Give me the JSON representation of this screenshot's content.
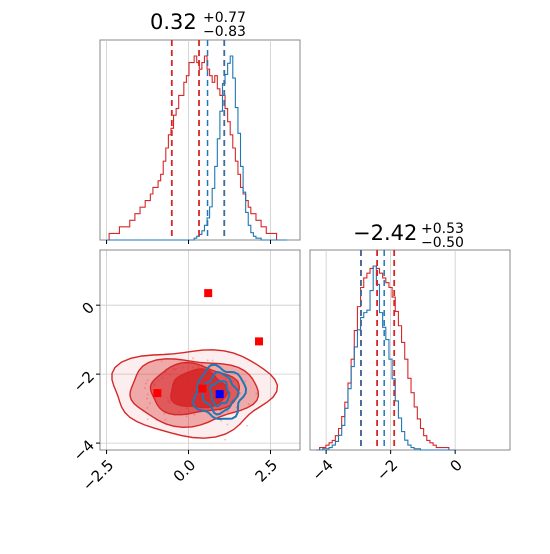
{
  "colors": {
    "red": "#d62728",
    "blue": "#1f77b4",
    "marker_red": "#ff0000",
    "marker_blue": "#0000ff",
    "grid": "#cccccc",
    "frame": "#888888"
  },
  "chart_data": [
    {
      "panel": "top-left",
      "type": "histogram",
      "title": {
        "base": "0.32",
        "sup": "+0.77",
        "sub": "−0.83"
      },
      "xlim": [
        -2.7,
        3.4
      ],
      "grid": true,
      "vlines_red": [
        -0.51,
        0.32,
        1.09
      ],
      "vlines_blue": [
        0.58,
        1.09
      ],
      "series": [
        {
          "name": "",
          "color": "red",
          "x_range": [
            -2.5,
            3.0
          ],
          "values": [
            0,
            1,
            1,
            1,
            1,
            2,
            2,
            2,
            2,
            3,
            3,
            4,
            4,
            5,
            5,
            6,
            6,
            7,
            8,
            8,
            9,
            10,
            12,
            14,
            16,
            17,
            19,
            20,
            22,
            22,
            24,
            25,
            27,
            27,
            28,
            27,
            26,
            27,
            28,
            26,
            25,
            24,
            25,
            23,
            22,
            22,
            20,
            18,
            16,
            14,
            12,
            10,
            8,
            7,
            6,
            5,
            4,
            4,
            3,
            3,
            2,
            2,
            1,
            1,
            1,
            1,
            0,
            0,
            0,
            0
          ]
        },
        {
          "name": "",
          "color": "blue",
          "x_range": [
            -2.5,
            3.0
          ],
          "values": [
            0,
            0,
            0,
            0,
            0,
            0,
            0,
            0,
            0,
            0,
            0,
            0,
            0,
            0,
            0,
            0,
            0,
            0,
            0,
            0,
            0,
            0,
            0,
            0,
            0,
            0,
            0,
            0,
            0,
            0,
            0,
            0,
            0,
            0,
            1,
            2,
            3,
            5,
            8,
            12,
            18,
            28,
            40,
            55,
            70,
            85,
            90,
            96,
            100,
            88,
            72,
            58,
            40,
            26,
            15,
            8,
            4,
            2,
            1,
            1,
            0,
            0,
            0,
            0,
            0,
            0,
            0,
            0,
            0,
            0
          ]
        }
      ]
    },
    {
      "panel": "bottom-left",
      "type": "scatter",
      "xlim": [
        -2.7,
        3.4
      ],
      "ylim": [
        -4.2,
        1.6
      ],
      "grid": true,
      "x_ticks": [
        "−2.5",
        "0.0",
        "2.5"
      ],
      "x_tick_values": [
        -2.5,
        0.0,
        2.5
      ],
      "y_ticks": [
        "0",
        "−2",
        "−4"
      ],
      "y_tick_values": [
        0,
        -2,
        -4
      ],
      "red_markers": [
        [
          0.6,
          0.35
        ],
        [
          2.15,
          -1.05
        ],
        [
          -0.95,
          -2.55
        ],
        [
          0.42,
          -2.42
        ]
      ],
      "blue_markers": [
        [
          0.95,
          -2.58
        ]
      ],
      "red_contours": [
        {
          "cx": 0.12,
          "cy": -2.5,
          "rx": 2.45,
          "ry": 1.25,
          "fill": 0.08
        },
        {
          "cx": 0.1,
          "cy": -2.5,
          "rx": 1.95,
          "ry": 0.95,
          "fill": 0.35
        },
        {
          "cx": 0.15,
          "cy": -2.45,
          "rx": 1.35,
          "ry": 0.72,
          "fill": 0.6
        },
        {
          "cx": 0.3,
          "cy": -2.45,
          "rx": 0.85,
          "ry": 0.55,
          "fill": 0.9
        }
      ],
      "blue_contours": [
        {
          "cx": 0.95,
          "cy": -2.55,
          "rx": 0.75,
          "ry": 0.75
        },
        {
          "cx": 0.95,
          "cy": -2.55,
          "rx": 0.5,
          "ry": 0.55
        },
        {
          "cx": 0.95,
          "cy": -2.55,
          "rx": 0.28,
          "ry": 0.35
        }
      ]
    },
    {
      "panel": "bottom-right",
      "type": "histogram",
      "title": {
        "base": "−2.42",
        "sup": "+0.53",
        "sub": "−0.50"
      },
      "xlim": [
        -4.5,
        1.7
      ],
      "grid": true,
      "x_ticks": [
        "−4",
        "−2",
        "0"
      ],
      "x_tick_values": [
        -4,
        -2,
        0
      ],
      "vlines_red": [
        -2.92,
        -2.42,
        -1.89
      ],
      "vlines_blue": [
        -2.92,
        -2.2
      ],
      "series": [
        {
          "name": "",
          "color": "red",
          "x_range": [
            -4.3,
            0.0
          ],
          "values": [
            0,
            1,
            1,
            2,
            3,
            4,
            6,
            9,
            14,
            20,
            28,
            38,
            50,
            60,
            68,
            72,
            74,
            76,
            77,
            76,
            74,
            72,
            70,
            68,
            64,
            58,
            52,
            45,
            38,
            30,
            24,
            18,
            13,
            9,
            6,
            4,
            3,
            2,
            1,
            1,
            1,
            1,
            0,
            0
          ]
        },
        {
          "name": "",
          "color": "blue",
          "x_range": [
            -4.3,
            0.0
          ],
          "values": [
            0,
            0,
            1,
            1,
            2,
            4,
            7,
            12,
            20,
            34,
            50,
            68,
            84,
            98,
            108,
            112,
            114,
            130,
            150,
            135,
            112,
            100,
            90,
            74,
            58,
            40,
            26,
            15,
            8,
            4,
            2,
            1,
            1,
            0,
            0,
            0,
            0,
            0,
            0,
            0,
            0,
            0,
            0,
            0
          ]
        }
      ]
    }
  ]
}
